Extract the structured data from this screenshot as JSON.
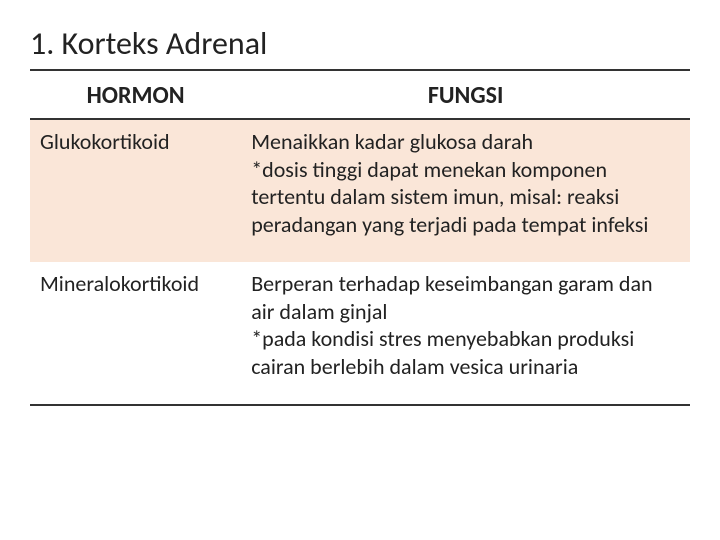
{
  "title": "1. Korteks Adrenal",
  "table": {
    "columns": [
      "HORMON",
      "FUNGSI"
    ],
    "col_widths_pct": [
      32,
      68
    ],
    "header_fontsize": 24,
    "cell_fontsize": 22,
    "title_fontsize": 32,
    "border_color": "#333333",
    "text_color": "#222222",
    "row_bg_colors": [
      "#fae6d8",
      "#ffffff"
    ],
    "rows": [
      {
        "hormone": "Glukokortikoid",
        "function_lines": [
          "Menaikkan kadar glukosa darah",
          "*dosis tinggi dapat menekan komponen tertentu dalam sistem imun, misal: reaksi peradangan yang terjadi pada tempat infeksi"
        ]
      },
      {
        "hormone": "Mineralokortikoid",
        "function_lines": [
          "Berperan terhadap keseimbangan garam dan air dalam ginjal",
          "*pada kondisi stres menyebabkan produksi cairan berlebih dalam vesica urinaria"
        ]
      }
    ]
  }
}
